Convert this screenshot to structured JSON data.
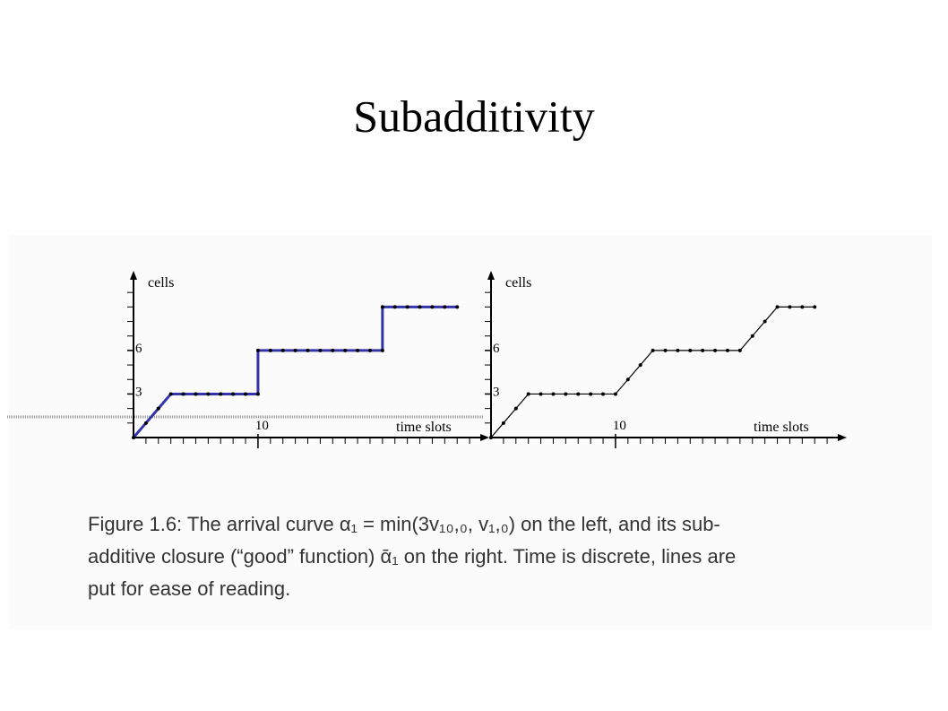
{
  "title": "Subadditivity",
  "chart_data": [
    {
      "type": "line",
      "y_label": "cells",
      "x_label": "time slots",
      "x": [
        0,
        1,
        2,
        3,
        4,
        5,
        6,
        7,
        8,
        9,
        10,
        10,
        11,
        12,
        13,
        14,
        15,
        16,
        17,
        18,
        19,
        20,
        20,
        21,
        22,
        23,
        24,
        25,
        26
      ],
      "values": [
        0,
        1,
        2,
        3,
        3,
        3,
        3,
        3,
        3,
        3,
        3,
        6,
        6,
        6,
        6,
        6,
        6,
        6,
        6,
        6,
        6,
        6,
        9,
        9,
        9,
        9,
        9,
        9,
        9
      ],
      "color": "#3333aa",
      "marker_color": "#000000",
      "xlim": [
        0,
        28
      ],
      "ylim": [
        0,
        11
      ],
      "xticks": [
        10
      ],
      "yticks": [
        3,
        6
      ],
      "minor_tick_step": 1
    },
    {
      "type": "line",
      "y_label": "cells",
      "x_label": "time slots",
      "x": [
        0,
        1,
        2,
        3,
        4,
        5,
        6,
        7,
        8,
        9,
        10,
        11,
        12,
        13,
        14,
        15,
        16,
        17,
        18,
        19,
        20,
        21,
        22,
        23,
        24,
        25,
        26
      ],
      "values": [
        0,
        1,
        2,
        3,
        3,
        3,
        3,
        3,
        3,
        3,
        3,
        4,
        5,
        6,
        6,
        6,
        6,
        6,
        6,
        6,
        6,
        7,
        8,
        9,
        9,
        9,
        9
      ],
      "color": "#000000",
      "marker_color": "#000000",
      "xlim": [
        0,
        28
      ],
      "ylim": [
        0,
        11
      ],
      "xticks": [
        10
      ],
      "yticks": [
        3,
        6
      ],
      "minor_tick_step": 1
    }
  ],
  "caption": [
    "Figure 1.6: The arrival curve α₁ = min(3v₁₀,₀, v₁,₀) on the left, and its sub-",
    "additive closure (“good” function) ᾱ₁ on the right. Time is discrete, lines are",
    "put for ease of reading."
  ]
}
